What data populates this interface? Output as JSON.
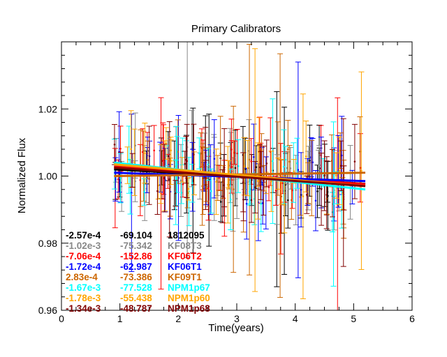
{
  "chart_data": {
    "type": "scatter",
    "title": "Primary Calibrators",
    "xlabel": "Time(years)",
    "ylabel": "Normalized Flux",
    "xlim": [
      0,
      6
    ],
    "ylim": [
      0.96,
      1.04
    ],
    "x_ticks": [
      "0",
      "1",
      "2",
      "3",
      "4",
      "5",
      "6"
    ],
    "y_ticks": [
      "0.96",
      "0.98",
      "1.00",
      "1.02"
    ],
    "grid": false,
    "legend_placement": "lower-left",
    "series": [
      {
        "name": "1812095",
        "slope": "-2.57e-4",
        "intercept": "-69.104",
        "color": "#000000",
        "fit": [
          [
            0.9,
            1.002
          ],
          [
            5.2,
            0.9977
          ]
        ]
      },
      {
        "name": "KF08T3",
        "slope": "-1.02e-3",
        "intercept": "-75.342",
        "color": "#888888",
        "fit": [
          [
            0.9,
            1.003
          ],
          [
            5.2,
            0.9974
          ]
        ]
      },
      {
        "name": "KF06T2",
        "slope": "-7.06e-4",
        "intercept": "-152.86",
        "color": "#ff0000",
        "fit": [
          [
            0.9,
            1.0028
          ],
          [
            5.2,
            0.9976
          ]
        ]
      },
      {
        "name": "KF06T1",
        "slope": "-1.72e-4",
        "intercept": "-62.987",
        "color": "#0000ff",
        "fit": [
          [
            0.9,
            1.001
          ],
          [
            5.2,
            0.9985
          ]
        ]
      },
      {
        "name": "KF09T1",
        "slope": "2.83e-4",
        "intercept": "-73.386",
        "color": "#cc6600",
        "fit": [
          [
            0.9,
            1.0
          ],
          [
            5.2,
            1.001
          ]
        ]
      },
      {
        "name": "NPM1p67",
        "slope": "-1.67e-3",
        "intercept": "-77.528",
        "color": "#00ffff",
        "fit": [
          [
            0.9,
            1.004
          ],
          [
            5.2,
            0.996
          ]
        ]
      },
      {
        "name": "NPM1p60",
        "slope": "-1.78e-3",
        "intercept": "-55.438",
        "color": "#ffa500",
        "fit": [
          [
            0.9,
            1.0035
          ],
          [
            5.2,
            0.997
          ]
        ]
      },
      {
        "name": "NPM1p68",
        "slope": "-1.34e-3",
        "intercept": "-48.787",
        "color": "#800000",
        "fit": [
          [
            0.9,
            1.0025
          ],
          [
            5.2,
            0.997
          ]
        ]
      }
    ]
  }
}
